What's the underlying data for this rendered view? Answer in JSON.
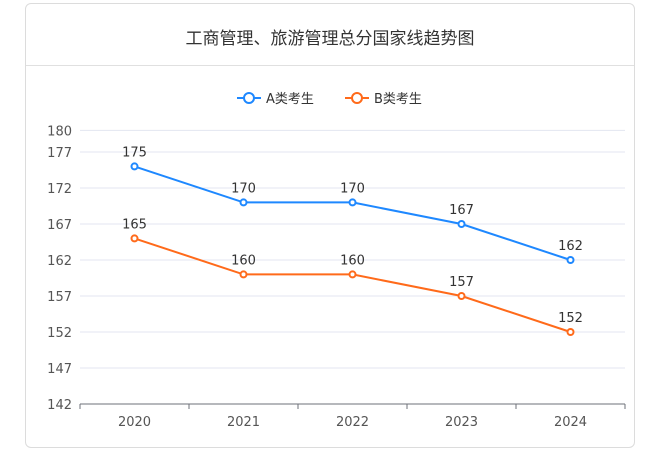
{
  "chart_data": {
    "type": "line",
    "title": "工商管理、旅游管理总分国家线趋势图",
    "categories": [
      "2020",
      "2021",
      "2022",
      "2023",
      "2024"
    ],
    "series": [
      {
        "name": "A类考生",
        "color": "#1e88ff",
        "values": [
          175,
          170,
          170,
          167,
          162
        ]
      },
      {
        "name": "B类考生",
        "color": "#ff6a1a",
        "values": [
          165,
          160,
          160,
          157,
          152
        ]
      }
    ],
    "yticks": [
      142,
      147,
      152,
      157,
      162,
      167,
      172,
      177,
      180
    ],
    "ylim": [
      142,
      180
    ],
    "grid": true,
    "legend": "top-center",
    "xlabel": "",
    "ylabel": ""
  }
}
